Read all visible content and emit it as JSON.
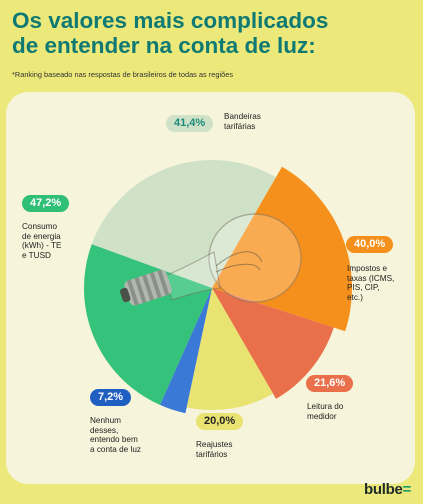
{
  "header": {
    "title_line1": "Os valores mais complicados",
    "title_line2": "de entender na conta de luz:",
    "subtitle": "*Ranking baseado nas respostas de brasileiros de todas as regiões"
  },
  "chart_data": {
    "type": "pie",
    "slices": [
      {
        "value_label": "41,4%",
        "value": 41.4,
        "label_lines": [
          "Bandeiras",
          "tarifárias"
        ],
        "color": "#cfe2c8",
        "badge_bg": "#cfe2c8",
        "badge_fg": "#1a8a7a"
      },
      {
        "value_label": "40,0%",
        "value": 40.0,
        "label_lines": [
          "Impostos e",
          "taxas (ICMS,",
          "PIS, CIP,",
          "etc.)"
        ],
        "color": "#f6901c",
        "badge_bg": "#f6901c",
        "badge_fg": "#ffffff"
      },
      {
        "value_label": "21,6%",
        "value": 21.6,
        "label_lines": [
          "Leitura do",
          "medidor"
        ],
        "color": "#e9704a",
        "badge_bg": "#e9704a",
        "badge_fg": "#ffffff"
      },
      {
        "value_label": "20,0%",
        "value": 20.0,
        "label_lines": [
          "Reajustes",
          "tarifários"
        ],
        "color": "#e9e371",
        "badge_bg": "#e9e371",
        "badge_fg": "#222222"
      },
      {
        "value_label": "7,2%",
        "value": 7.2,
        "label_lines": [
          "Nenhum",
          "desses,",
          "entendo bem",
          "a conta de luz"
        ],
        "color": "#3a7ad6",
        "badge_bg": "#1f5fc2",
        "badge_fg": "#ffffff"
      },
      {
        "value_label": "47,2%",
        "value": 47.2,
        "label_lines": [
          "Consumo",
          "de energia",
          "(kWh) - TE",
          "e TUSD"
        ],
        "color": "#35c27a",
        "badge_bg": "#2fbf76",
        "badge_fg": "#ffffff"
      }
    ]
  },
  "brand": {
    "logo_text": "bulbe",
    "logo_mark": "="
  }
}
